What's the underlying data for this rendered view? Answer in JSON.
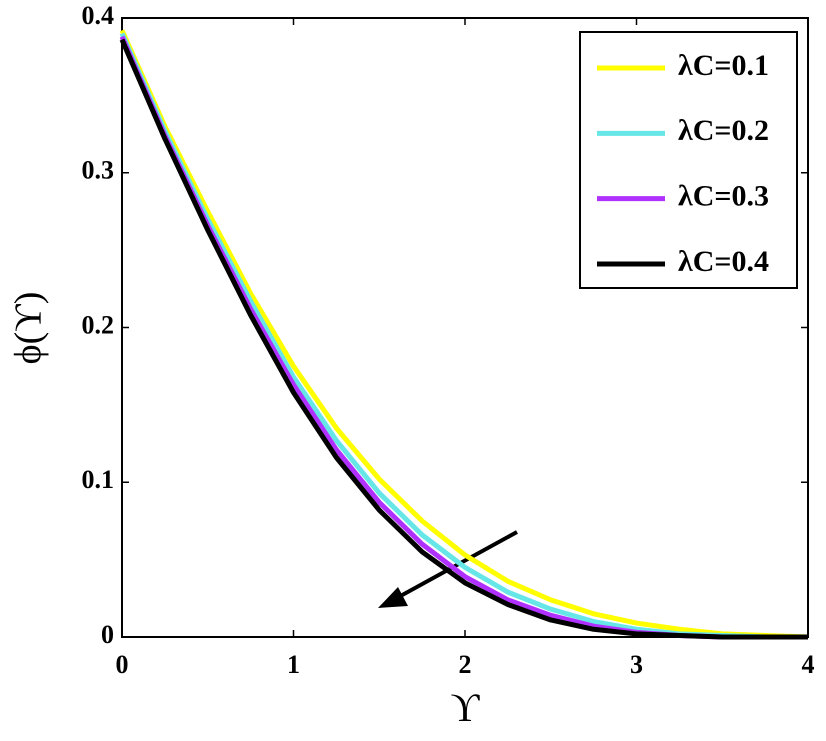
{
  "chart_data": {
    "type": "line",
    "xlabel": "ϒ",
    "ylabel": "ϕ(ϒ)",
    "x": [
      0,
      0.25,
      0.5,
      0.75,
      1,
      1.25,
      1.5,
      1.75,
      2,
      2.25,
      2.5,
      2.75,
      3,
      3.25,
      3.5,
      3.75,
      4
    ],
    "series": [
      {
        "name": "λC=0.1",
        "color": "#ffff00",
        "values": [
          0.392,
          0.33,
          0.275,
          0.222,
          0.175,
          0.135,
          0.102,
          0.075,
          0.053,
          0.036,
          0.024,
          0.015,
          0.009,
          0.005,
          0.002,
          0.001,
          0
        ]
      },
      {
        "name": "λC=0.2",
        "color": "#66e6e6",
        "values": [
          0.39,
          0.327,
          0.27,
          0.217,
          0.168,
          0.127,
          0.093,
          0.066,
          0.045,
          0.029,
          0.018,
          0.01,
          0.005,
          0.002,
          0.001,
          0,
          0
        ]
      },
      {
        "name": "λC=0.3",
        "color": "#b030ff",
        "values": [
          0.388,
          0.324,
          0.266,
          0.212,
          0.163,
          0.121,
          0.087,
          0.06,
          0.039,
          0.024,
          0.014,
          0.007,
          0.003,
          0.001,
          0,
          0,
          0
        ]
      },
      {
        "name": "λC=0.4",
        "color": "#000000",
        "values": [
          0.386,
          0.322,
          0.263,
          0.208,
          0.158,
          0.116,
          0.082,
          0.055,
          0.035,
          0.021,
          0.011,
          0.005,
          0.002,
          0.001,
          0,
          0,
          0
        ]
      }
    ],
    "xlim": [
      0,
      4
    ],
    "ylim": [
      0,
      0.4
    ],
    "xticks": [
      0,
      1,
      2,
      3,
      4
    ],
    "yticks": [
      0,
      0.1,
      0.2,
      0.3,
      0.4
    ],
    "legend": "northeast"
  }
}
